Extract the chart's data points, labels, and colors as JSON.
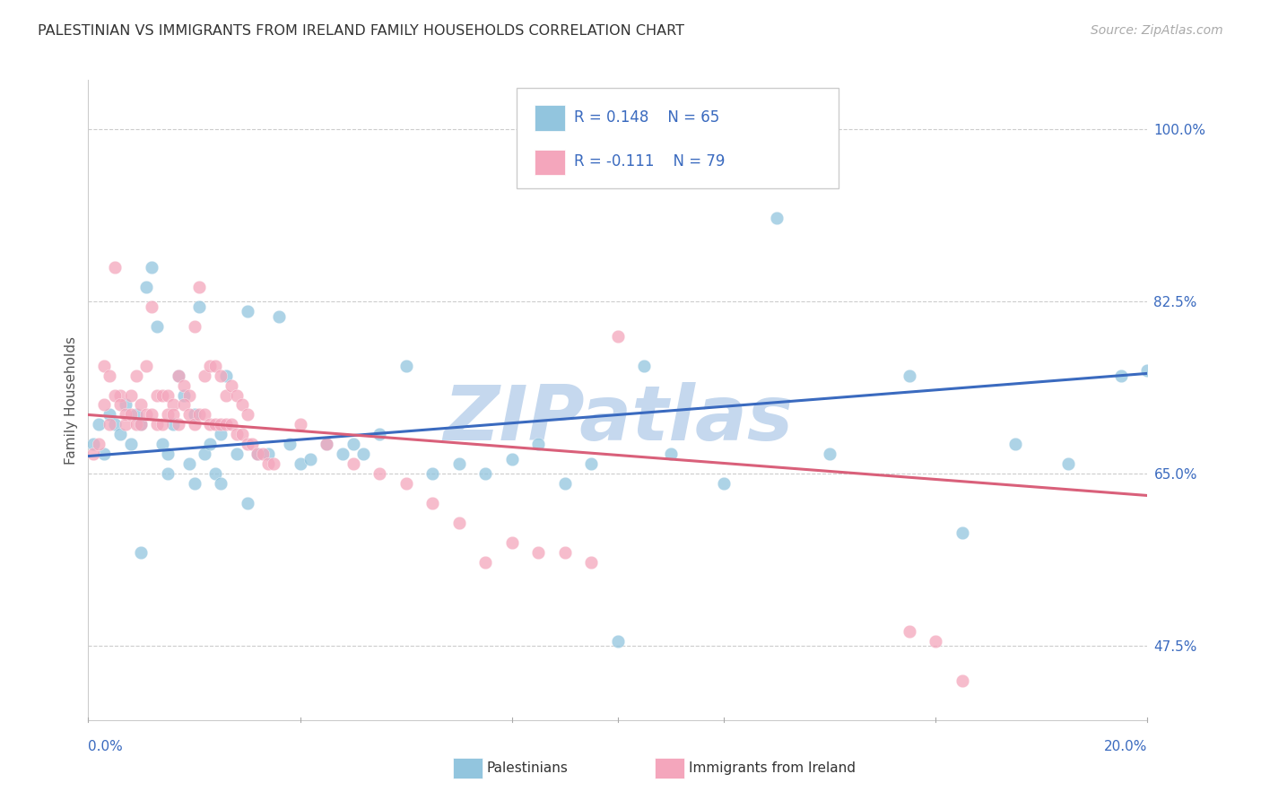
{
  "title": "PALESTINIAN VS IMMIGRANTS FROM IRELAND FAMILY HOUSEHOLDS CORRELATION CHART",
  "source": "Source: ZipAtlas.com",
  "ylabel_ticks": [
    "47.5%",
    "65.0%",
    "82.5%",
    "100.0%"
  ],
  "ylabel_vals": [
    0.475,
    0.65,
    0.825,
    1.0
  ],
  "ylabel_label": "Family Households",
  "legend_label1": "Palestinians",
  "legend_label2": "Immigrants from Ireland",
  "legend_R1": "R = 0.148",
  "legend_N1": "N = 65",
  "legend_R2": "R = -0.111",
  "legend_N2": "N = 79",
  "color_blue": "#92c5de",
  "color_pink": "#f4a6bc",
  "color_blue_line": "#3a6abf",
  "color_pink_line": "#d9607a",
  "color_blue_text": "#3a6abf",
  "watermark_color": "#c5d8ee",
  "blue_x": [
    0.001,
    0.002,
    0.003,
    0.004,
    0.005,
    0.006,
    0.007,
    0.008,
    0.009,
    0.01,
    0.011,
    0.012,
    0.013,
    0.014,
    0.015,
    0.016,
    0.017,
    0.018,
    0.019,
    0.02,
    0.021,
    0.022,
    0.023,
    0.024,
    0.025,
    0.026,
    0.028,
    0.03,
    0.032,
    0.034,
    0.036,
    0.038,
    0.04,
    0.042,
    0.045,
    0.048,
    0.05,
    0.052,
    0.055,
    0.06,
    0.065,
    0.07,
    0.075,
    0.08,
    0.085,
    0.09,
    0.095,
    0.1,
    0.105,
    0.11,
    0.12,
    0.13,
    0.14,
    0.155,
    0.165,
    0.175,
    0.185,
    0.195,
    0.2,
    0.205,
    0.01,
    0.015,
    0.02,
    0.025,
    0.03
  ],
  "blue_y": [
    0.68,
    0.7,
    0.67,
    0.71,
    0.7,
    0.69,
    0.72,
    0.68,
    0.71,
    0.7,
    0.84,
    0.86,
    0.8,
    0.68,
    0.67,
    0.7,
    0.75,
    0.73,
    0.66,
    0.71,
    0.82,
    0.67,
    0.68,
    0.65,
    0.69,
    0.75,
    0.67,
    0.815,
    0.67,
    0.67,
    0.81,
    0.68,
    0.66,
    0.665,
    0.68,
    0.67,
    0.68,
    0.67,
    0.69,
    0.76,
    0.65,
    0.66,
    0.65,
    0.665,
    0.68,
    0.64,
    0.66,
    0.48,
    0.76,
    0.67,
    0.64,
    0.91,
    0.67,
    0.75,
    0.59,
    0.68,
    0.66,
    0.75,
    0.755,
    0.76,
    0.57,
    0.65,
    0.64,
    0.64,
    0.62
  ],
  "pink_x": [
    0.001,
    0.002,
    0.003,
    0.004,
    0.005,
    0.006,
    0.007,
    0.008,
    0.009,
    0.01,
    0.011,
    0.012,
    0.013,
    0.014,
    0.015,
    0.016,
    0.017,
    0.018,
    0.019,
    0.02,
    0.021,
    0.022,
    0.023,
    0.024,
    0.025,
    0.026,
    0.027,
    0.028,
    0.029,
    0.03,
    0.003,
    0.004,
    0.005,
    0.006,
    0.007,
    0.008,
    0.009,
    0.01,
    0.011,
    0.012,
    0.013,
    0.014,
    0.015,
    0.016,
    0.017,
    0.018,
    0.019,
    0.02,
    0.021,
    0.022,
    0.023,
    0.024,
    0.025,
    0.026,
    0.027,
    0.028,
    0.029,
    0.03,
    0.031,
    0.032,
    0.033,
    0.034,
    0.035,
    0.04,
    0.045,
    0.05,
    0.055,
    0.06,
    0.065,
    0.07,
    0.075,
    0.08,
    0.085,
    0.09,
    0.095,
    0.1,
    0.155,
    0.16,
    0.165
  ],
  "pink_y": [
    0.67,
    0.68,
    0.76,
    0.75,
    0.86,
    0.73,
    0.7,
    0.73,
    0.75,
    0.72,
    0.76,
    0.82,
    0.73,
    0.73,
    0.73,
    0.72,
    0.75,
    0.74,
    0.73,
    0.8,
    0.84,
    0.75,
    0.76,
    0.76,
    0.75,
    0.73,
    0.74,
    0.73,
    0.72,
    0.71,
    0.72,
    0.7,
    0.73,
    0.72,
    0.71,
    0.71,
    0.7,
    0.7,
    0.71,
    0.71,
    0.7,
    0.7,
    0.71,
    0.71,
    0.7,
    0.72,
    0.71,
    0.7,
    0.71,
    0.71,
    0.7,
    0.7,
    0.7,
    0.7,
    0.7,
    0.69,
    0.69,
    0.68,
    0.68,
    0.67,
    0.67,
    0.66,
    0.66,
    0.7,
    0.68,
    0.66,
    0.65,
    0.64,
    0.62,
    0.6,
    0.56,
    0.58,
    0.57,
    0.57,
    0.56,
    0.79,
    0.49,
    0.48,
    0.44
  ],
  "xlim": [
    0.0,
    0.2
  ],
  "ylim": [
    0.4,
    1.05
  ],
  "blue_line_x0": 0.0,
  "blue_line_x1": 0.2,
  "blue_line_y0": 0.668,
  "blue_line_y1": 0.752,
  "pink_line_x0": 0.0,
  "pink_line_x1": 0.2,
  "pink_line_y0": 0.71,
  "pink_line_y1": 0.628
}
